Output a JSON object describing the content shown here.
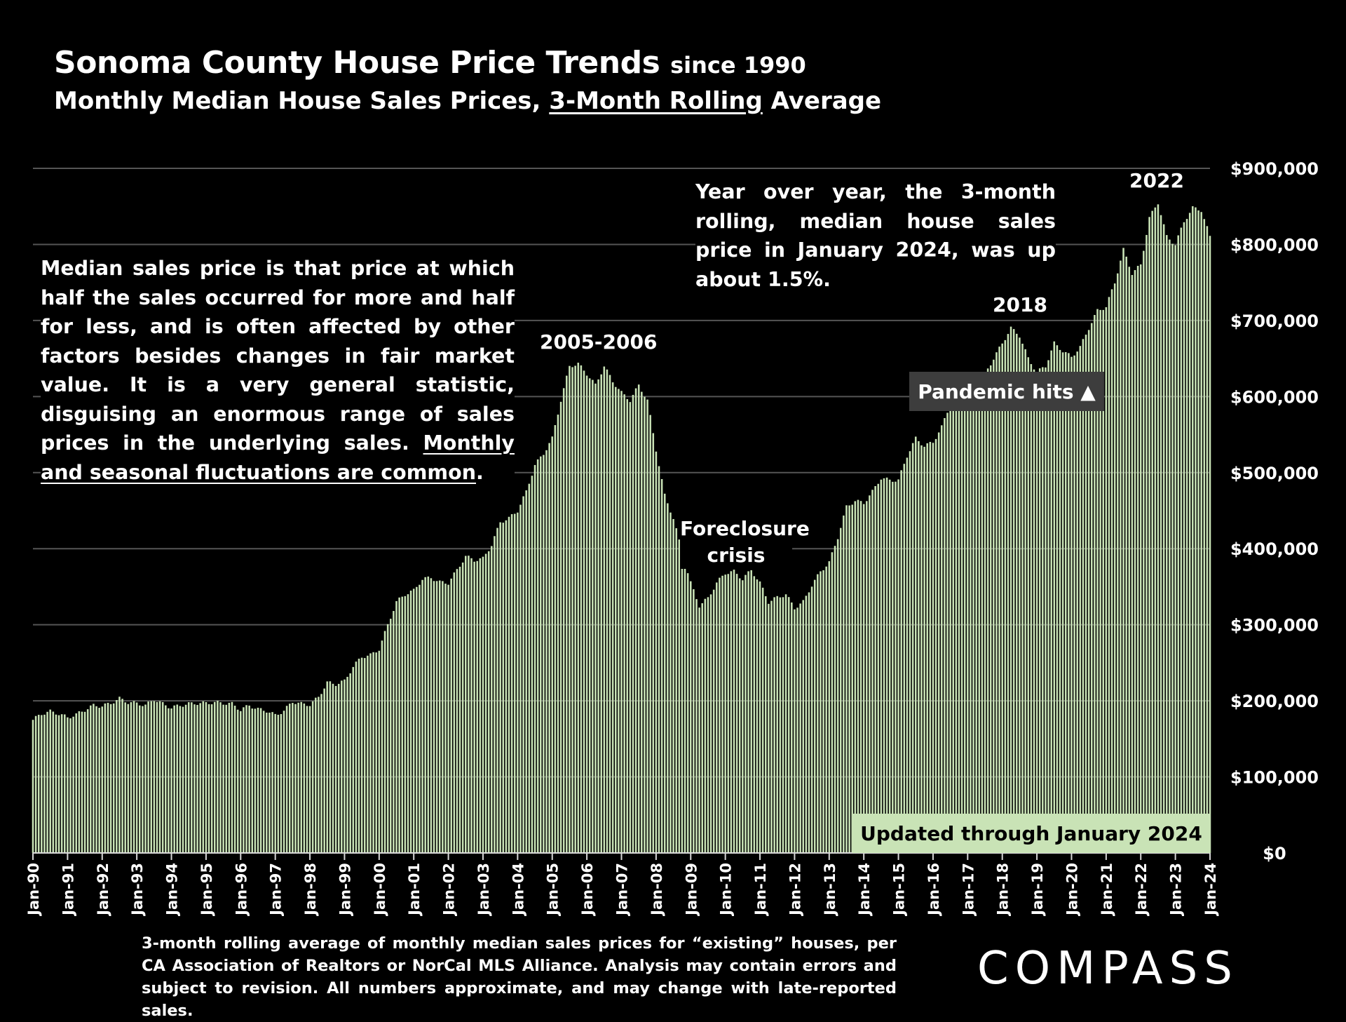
{
  "title": "Sonoma County House Price Trends",
  "title_since": "since 1990",
  "subtitle_pre": "Monthly Median House Sales Prices, ",
  "subtitle_underlined": "3-Month Rolling",
  "subtitle_post": " Average",
  "definition_note": {
    "text": "Median sales price is that price at which half the sales occurred for more and half for less, and is often affected by other factors besides changes in fair market value. It is a very general statistic, disguising an enormous range of sales prices in the underlying sales. ",
    "underlined": "Monthly and seasonal fluctuations are common",
    "end": "."
  },
  "yoy_note": "Year over year, the 3-month rolling, median house sales price in January 2024, was up about 1.5%.",
  "annotations": {
    "peak_2006": "2005-2006",
    "crisis_line1": "Foreclosure",
    "crisis_line2": "crisis",
    "peak_2018": "2018",
    "peak_2022": "2022",
    "pandemic": "Pandemic hits ▲",
    "updated": "Updated through January 2024"
  },
  "footnote": "3-month rolling average of monthly median sales prices for “existing” houses, per CA Association of Realtors or NorCal MLS Alliance. Analysis may contain errors and subject to revision. All numbers approximate, and may change with late-reported sales.",
  "logo": "COMPASS",
  "colors": {
    "bar": "#c9e3b6",
    "grid": "#555555",
    "background": "#000000"
  },
  "chart_data": {
    "type": "bar",
    "title": "Sonoma County House Price Trends since 1990",
    "subtitle": "Monthly Median House Sales Prices, 3-Month Rolling Average",
    "xlabel": "",
    "ylabel": "",
    "ylim": [
      0,
      900000
    ],
    "yticks": [
      0,
      100000,
      200000,
      300000,
      400000,
      500000,
      600000,
      700000,
      800000,
      900000
    ],
    "ytick_labels": [
      "$0",
      "$100,000",
      "$200,000",
      "$300,000",
      "$400,000",
      "$500,000",
      "$600,000",
      "$700,000",
      "$800,000",
      "$900,000"
    ],
    "xtick_labels": [
      "Jan-90",
      "Jan-91",
      "Jan-92",
      "Jan-93",
      "Jan-94",
      "Jan-95",
      "Jan-96",
      "Jan-97",
      "Jan-98",
      "Jan-99",
      "Jan-00",
      "Jan-01",
      "Jan-02",
      "Jan-03",
      "Jan-04",
      "Jan-05",
      "Jan-06",
      "Jan-07",
      "Jan-08",
      "Jan-09",
      "Jan-10",
      "Jan-11",
      "Jan-12",
      "Jan-13",
      "Jan-14",
      "Jan-15",
      "Jan-16",
      "Jan-17",
      "Jan-18",
      "Jan-19",
      "Jan-20",
      "Jan-21",
      "Jan-22",
      "Jan-23",
      "Jan-24"
    ],
    "grid": true,
    "series_name": "3-month rolling median house sales price",
    "start_month": "Jan-90",
    "end_month": "Jan-24",
    "interval": "monthly",
    "anchors": [
      [
        "Jan-90",
        175000
      ],
      [
        "Apr-90",
        183000
      ],
      [
        "Jul-90",
        186000
      ],
      [
        "Oct-90",
        183000
      ],
      [
        "Jan-91",
        178000
      ],
      [
        "Apr-91",
        182000
      ],
      [
        "Jul-91",
        188000
      ],
      [
        "Oct-91",
        194000
      ],
      [
        "Jan-92",
        193000
      ],
      [
        "Apr-92",
        197000
      ],
      [
        "Jul-92",
        203000
      ],
      [
        "Oct-92",
        198000
      ],
      [
        "Jan-93",
        197000
      ],
      [
        "Apr-93",
        194000
      ],
      [
        "Jul-93",
        202000
      ],
      [
        "Oct-93",
        196000
      ],
      [
        "Jan-94",
        191000
      ],
      [
        "Apr-94",
        194000
      ],
      [
        "Jul-94",
        196000
      ],
      [
        "Oct-94",
        197000
      ],
      [
        "Jan-95",
        197000
      ],
      [
        "Apr-95",
        198000
      ],
      [
        "Jul-95",
        197000
      ],
      [
        "Oct-95",
        196000
      ],
      [
        "Jan-96",
        188000
      ],
      [
        "Apr-96",
        194000
      ],
      [
        "Jul-96",
        189000
      ],
      [
        "Oct-96",
        187000
      ],
      [
        "Jan-97",
        181000
      ],
      [
        "Apr-97",
        187000
      ],
      [
        "Jul-97",
        199000
      ],
      [
        "Oct-97",
        196000
      ],
      [
        "Jan-98",
        195000
      ],
      [
        "Apr-98",
        205000
      ],
      [
        "Jul-98",
        224000
      ],
      [
        "Oct-98",
        222000
      ],
      [
        "Jan-99",
        226000
      ],
      [
        "Apr-99",
        245000
      ],
      [
        "Jul-99",
        258000
      ],
      [
        "Oct-99",
        260000
      ],
      [
        "Jan-00",
        268000
      ],
      [
        "Apr-00",
        300000
      ],
      [
        "Jul-00",
        330000
      ],
      [
        "Oct-00",
        340000
      ],
      [
        "Jan-01",
        345000
      ],
      [
        "Apr-01",
        360000
      ],
      [
        "Jul-01",
        362000
      ],
      [
        "Oct-01",
        356000
      ],
      [
        "Jan-02",
        355000
      ],
      [
        "Apr-02",
        372000
      ],
      [
        "Jul-02",
        390000
      ],
      [
        "Oct-02",
        385000
      ],
      [
        "Jan-03",
        387000
      ],
      [
        "Apr-03",
        405000
      ],
      [
        "Jul-03",
        435000
      ],
      [
        "Oct-03",
        440000
      ],
      [
        "Jan-04",
        450000
      ],
      [
        "Apr-04",
        475000
      ],
      [
        "Jul-04",
        510000
      ],
      [
        "Oct-04",
        525000
      ],
      [
        "Jan-05",
        545000
      ],
      [
        "Apr-05",
        595000
      ],
      [
        "Jul-05",
        640000
      ],
      [
        "Oct-05",
        643000
      ],
      [
        "Jan-06",
        630000
      ],
      [
        "Apr-06",
        615000
      ],
      [
        "Jul-06",
        640000
      ],
      [
        "Oct-06",
        620000
      ],
      [
        "Jan-07",
        605000
      ],
      [
        "Apr-07",
        595000
      ],
      [
        "Jul-07",
        615000
      ],
      [
        "Oct-07",
        595000
      ],
      [
        "Jan-08",
        530000
      ],
      [
        "Apr-08",
        470000
      ],
      [
        "Jul-08",
        440000
      ],
      [
        "Oct-08",
        395000
      ],
      [
        "Jan-09",
        355000
      ],
      [
        "Apr-09",
        325000
      ],
      [
        "Jul-09",
        335000
      ],
      [
        "Oct-09",
        355000
      ],
      [
        "Jan-10",
        368000
      ],
      [
        "Apr-10",
        370000
      ],
      [
        "Jul-10",
        360000
      ],
      [
        "Oct-10",
        372000
      ],
      [
        "Jan-11",
        355000
      ],
      [
        "Apr-11",
        330000
      ],
      [
        "Jul-11",
        336000
      ],
      [
        "Oct-11",
        340000
      ],
      [
        "Jan-12",
        322000
      ],
      [
        "Apr-12",
        330000
      ],
      [
        "Jul-12",
        352000
      ],
      [
        "Oct-12",
        370000
      ],
      [
        "Jan-13",
        382000
      ],
      [
        "Apr-13",
        415000
      ],
      [
        "Jul-13",
        455000
      ],
      [
        "Oct-13",
        463000
      ],
      [
        "Jan-14",
        460000
      ],
      [
        "Apr-14",
        475000
      ],
      [
        "Jul-14",
        493000
      ],
      [
        "Oct-14",
        490000
      ],
      [
        "Jan-15",
        490000
      ],
      [
        "Apr-15",
        522000
      ],
      [
        "Jul-15",
        545000
      ],
      [
        "Oct-15",
        535000
      ],
      [
        "Jan-16",
        540000
      ],
      [
        "Apr-16",
        560000
      ],
      [
        "Jul-16",
        590000
      ],
      [
        "Oct-16",
        585000
      ],
      [
        "Jan-17",
        585000
      ],
      [
        "Apr-17",
        600000
      ],
      [
        "Jul-17",
        630000
      ],
      [
        "Oct-17",
        650000
      ],
      [
        "Jan-18",
        670000
      ],
      [
        "Apr-18",
        690000
      ],
      [
        "Jul-18",
        680000
      ],
      [
        "Oct-18",
        650000
      ],
      [
        "Jan-19",
        632000
      ],
      [
        "Apr-19",
        640000
      ],
      [
        "Jul-19",
        670000
      ],
      [
        "Oct-19",
        660000
      ],
      [
        "Jan-20",
        652000
      ],
      [
        "Apr-20",
        665000
      ],
      [
        "Jul-20",
        690000
      ],
      [
        "Oct-20",
        713000
      ],
      [
        "Jan-21",
        718000
      ],
      [
        "Apr-21",
        750000
      ],
      [
        "Jul-21",
        793000
      ],
      [
        "Oct-21",
        762000
      ],
      [
        "Jan-22",
        773000
      ],
      [
        "Apr-22",
        835000
      ],
      [
        "Jul-22",
        855000
      ],
      [
        "Oct-22",
        810000
      ],
      [
        "Jan-23",
        800000
      ],
      [
        "Apr-23",
        830000
      ],
      [
        "Jul-23",
        848000
      ],
      [
        "Oct-23",
        845000
      ],
      [
        "Jan-24",
        810000
      ]
    ]
  }
}
